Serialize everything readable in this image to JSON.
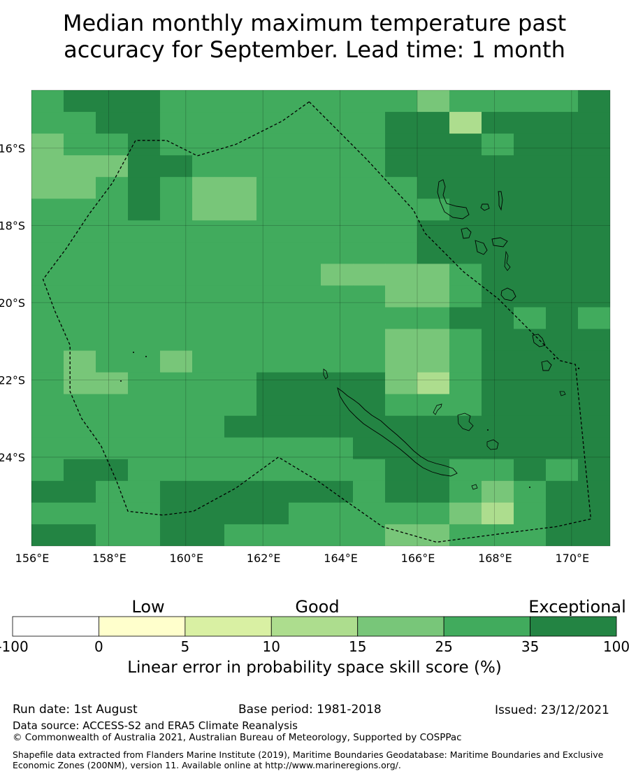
{
  "title": {
    "line1": "Median monthly maximum temperature past",
    "line2": "accuracy for September. Lead time: 1 month"
  },
  "map": {
    "lon_min": 156,
    "lon_max": 171,
    "lat_max": -14.5,
    "lat_min": -26.3,
    "lon_ticks": [
      {
        "value": 156,
        "label": "156°E"
      },
      {
        "value": 158,
        "label": "158°E"
      },
      {
        "value": 160,
        "label": "160°E"
      },
      {
        "value": 162,
        "label": "162°E"
      },
      {
        "value": 164,
        "label": "164°E"
      },
      {
        "value": 166,
        "label": "166°E"
      },
      {
        "value": 168,
        "label": "168°E"
      },
      {
        "value": 170,
        "label": "170°E"
      }
    ],
    "lat_ticks": [
      {
        "value": -16,
        "label": "16°S"
      },
      {
        "value": -18,
        "label": "18°S"
      },
      {
        "value": -20,
        "label": "20°S"
      },
      {
        "value": -22,
        "label": "22°S"
      },
      {
        "value": -24,
        "label": "24°S"
      }
    ],
    "grid_levels": [
      "00000444000004444456000044555555",
      "00000442001155005555663001131000",
      "03000000111444444455553440000000",
      "00000000000000000055004444000000",
      "00000111111111110000000000000000",
      "00000000000000000000000000055500",
      "00000000000000000000000000005000",
      "00000000001000000000000000001110",
      "00000000000000000000000000001110",
      "00000000000000000000000000000000",
      "00000000000000000000000000000000"
    ],
    "cells": "see grid",
    "eez_boundary": [
      [
        163.2,
        -14.8
      ],
      [
        164.7,
        -16.3
      ],
      [
        165.9,
        -17.6
      ],
      [
        166.2,
        -18.2
      ],
      [
        167.2,
        -19.2
      ],
      [
        168.1,
        -19.9
      ],
      [
        168.8,
        -20.6
      ],
      [
        169.7,
        -21.5
      ],
      [
        170.1,
        -21.6
      ],
      [
        170.5,
        -25.6
      ],
      [
        169.6,
        -25.8
      ],
      [
        168.8,
        -25.9
      ],
      [
        166.5,
        -26.2
      ],
      [
        165.1,
        -25.8
      ],
      [
        164.1,
        -25.1
      ],
      [
        163.4,
        -24.6
      ],
      [
        162.4,
        -24.0
      ],
      [
        161.3,
        -24.8
      ],
      [
        160.2,
        -25.4
      ],
      [
        159.4,
        -25.5
      ],
      [
        158.5,
        -25.4
      ],
      [
        158.2,
        -24.6
      ],
      [
        157.8,
        -23.7
      ],
      [
        157.3,
        -23.0
      ],
      [
        157.0,
        -22.3
      ],
      [
        157.0,
        -21.1
      ],
      [
        156.6,
        -20.2
      ],
      [
        156.3,
        -19.4
      ],
      [
        156.9,
        -18.6
      ],
      [
        157.5,
        -17.7
      ],
      [
        158.1,
        -16.9
      ],
      [
        158.7,
        -15.8
      ],
      [
        159.5,
        -15.8
      ],
      [
        160.3,
        -16.2
      ],
      [
        161.3,
        -15.9
      ],
      [
        162.5,
        -15.3
      ]
    ]
  },
  "colorbar": {
    "categories": [
      {
        "label": "Low",
        "x": 212
      },
      {
        "label": "Good",
        "x": 454
      },
      {
        "label": "Exceptional",
        "x": 826
      }
    ],
    "bins": [
      {
        "from": "-100",
        "to": "0",
        "color": "#ffffff"
      },
      {
        "from": "0",
        "to": "5",
        "color": "#ffffcc"
      },
      {
        "from": "5",
        "to": "10",
        "color": "#d9f0a3"
      },
      {
        "from": "10",
        "to": "15",
        "color": "#addd8e"
      },
      {
        "from": "15",
        "to": "25",
        "color": "#78c679"
      },
      {
        "from": "25",
        "to": "35",
        "color": "#41ab5d"
      },
      {
        "from": "35",
        "to": "100",
        "color": "#238443"
      }
    ],
    "tick_labels": [
      "-100",
      "0",
      "5",
      "10",
      "15",
      "25",
      "35",
      "100"
    ],
    "label": "Linear error in probability space skill score (%)"
  },
  "footer": {
    "run_date": "Run date: 1st August",
    "base_period": "Base period: 1981-2018",
    "issued": "Issued: 23/12/2021",
    "data_source": "Data source: ACCESS-S2 and ERA5 Climate Reanalysis",
    "copyright": "© Commonwealth of Australia 2021, Australian Bureau of Meteorology, Supported by COSPPac",
    "shapefile": "Shapefile data extracted from Flanders Marine Institute (2019), Maritime Boundaries Geodatabase: Maritime Boundaries and Exclusive Economic Zones (200NM), version 11. Available online at http://www.marineregions.org/."
  }
}
